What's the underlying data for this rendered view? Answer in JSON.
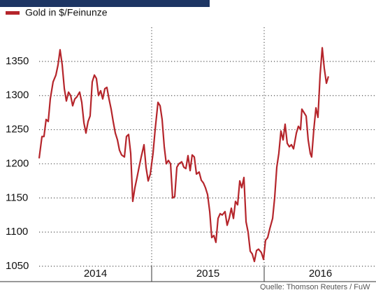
{
  "chart_data": {
    "type": "line",
    "legend": "Gold in $/Feinunze",
    "source": "Quelle: Thomson Reuters / FuW",
    "series": [
      {
        "name": "Gold in $/Feinunze",
        "color": "#b5252b",
        "x": [
          2014.0,
          2014.025,
          2014.043,
          2014.062,
          2014.081,
          2014.099,
          2014.124,
          2014.149,
          2014.168,
          2014.186,
          2014.205,
          2014.224,
          2014.242,
          2014.261,
          2014.28,
          2014.298,
          2014.317,
          2014.335,
          2014.36,
          2014.379,
          2014.398,
          2014.416,
          2014.435,
          2014.453,
          2014.472,
          2014.491,
          2014.509,
          2014.528,
          2014.547,
          2014.565,
          2014.584,
          2014.602,
          2014.621,
          2014.64,
          2014.658,
          2014.677,
          2014.696,
          2014.714,
          2014.733,
          2014.758,
          2014.776,
          2014.795,
          2014.814,
          2014.832,
          2014.851,
          2014.87,
          2014.888,
          2014.907,
          2014.932,
          2014.95,
          2014.969,
          2014.988,
          2015.012,
          2015.031,
          2015.056,
          2015.075,
          2015.093,
          2015.112,
          2015.13,
          2015.149,
          2015.168,
          2015.186,
          2015.205,
          2015.224,
          2015.242,
          2015.267,
          2015.286,
          2015.304,
          2015.323,
          2015.342,
          2015.36,
          2015.379,
          2015.398,
          2015.422,
          2015.441,
          2015.46,
          2015.478,
          2015.497,
          2015.516,
          2015.534,
          2015.553,
          2015.571,
          2015.59,
          2015.609,
          2015.627,
          2015.652,
          2015.671,
          2015.689,
          2015.708,
          2015.727,
          2015.745,
          2015.764,
          2015.783,
          2015.801,
          2015.82,
          2015.839,
          2015.857,
          2015.876,
          2015.894,
          2015.913,
          2015.932,
          2015.95,
          2015.975,
          2015.994,
          2016.012,
          2016.031,
          2016.05,
          2016.075,
          2016.093,
          2016.112,
          2016.13,
          2016.149,
          2016.168,
          2016.186,
          2016.205,
          2016.224,
          2016.242,
          2016.261,
          2016.286,
          2016.304,
          2016.323,
          2016.335,
          2016.354,
          2016.373,
          2016.391,
          2016.41,
          2016.422,
          2016.441,
          2016.46,
          2016.478,
          2016.497,
          2016.516,
          2016.534,
          2016.553,
          2016.571
        ],
        "values": [
          1208,
          1240,
          1240,
          1265,
          1262,
          1295,
          1320,
          1330,
          1345,
          1367,
          1345,
          1310,
          1292,
          1305,
          1300,
          1285,
          1295,
          1298,
          1305,
          1290,
          1260,
          1245,
          1262,
          1270,
          1320,
          1330,
          1325,
          1300,
          1307,
          1295,
          1310,
          1312,
          1295,
          1280,
          1262,
          1245,
          1235,
          1220,
          1213,
          1210,
          1240,
          1243,
          1215,
          1145,
          1165,
          1180,
          1195,
          1210,
          1228,
          1195,
          1175,
          1185,
          1215,
          1250,
          1290,
          1285,
          1265,
          1225,
          1200,
          1205,
          1200,
          1150,
          1152,
          1195,
          1200,
          1203,
          1195,
          1193,
          1212,
          1190,
          1213,
          1210,
          1185,
          1188,
          1176,
          1172,
          1165,
          1155,
          1130,
          1092,
          1095,
          1085,
          1120,
          1127,
          1125,
          1130,
          1110,
          1120,
          1135,
          1120,
          1145,
          1140,
          1175,
          1165,
          1180,
          1115,
          1100,
          1072,
          1068,
          1057,
          1073,
          1075,
          1070,
          1060,
          1088,
          1092,
          1105,
          1120,
          1150,
          1195,
          1215,
          1248,
          1235,
          1258,
          1230,
          1225,
          1228,
          1222,
          1245,
          1255,
          1250,
          1280,
          1275,
          1270,
          1235,
          1215,
          1210,
          1250,
          1282,
          1268,
          1330,
          1370,
          1340,
          1318,
          1328
        ]
      }
    ],
    "xlim": [
      2014,
      2017
    ],
    "xticks": [
      {
        "value": 2014,
        "label": "2014"
      },
      {
        "value": 2015,
        "label": "2015"
      },
      {
        "value": 2016,
        "label": "2016"
      }
    ],
    "ylim": [
      1050,
      1400
    ],
    "yticks": [
      1050,
      1100,
      1150,
      1200,
      1250,
      1300,
      1350
    ],
    "grid": true
  }
}
